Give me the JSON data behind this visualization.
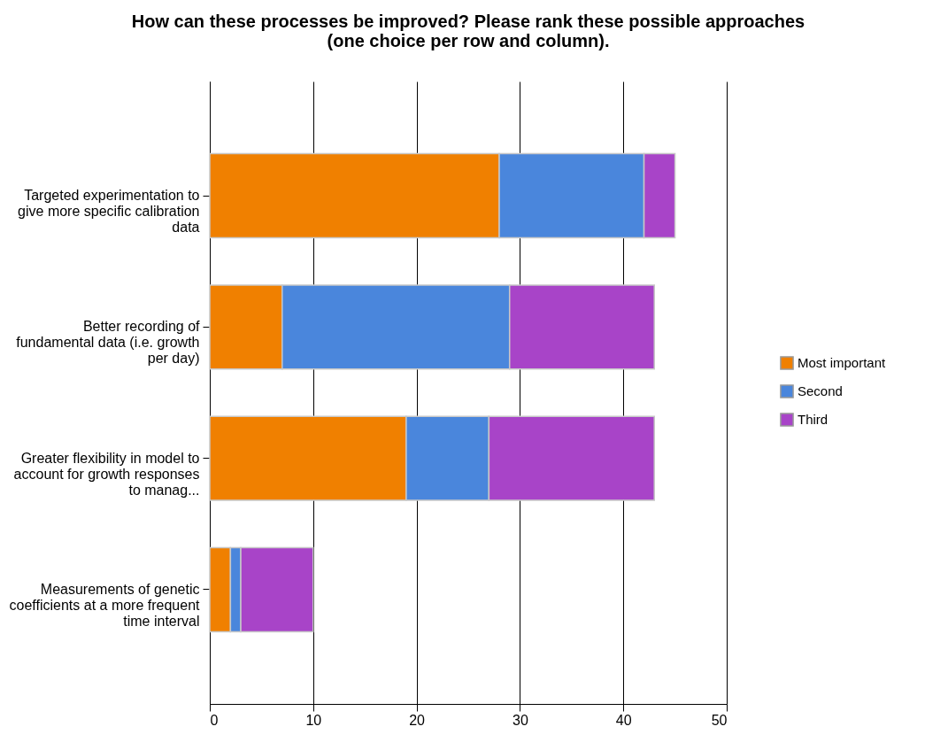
{
  "chart_data": {
    "type": "bar",
    "orientation": "horizontal",
    "stacked": true,
    "title": "How can these processes be improved? Please rank these possible approaches (one choice per row and column).",
    "categories": [
      "Targeted experimentation to give more specific calibration data",
      "Better recording of fundamental data (i.e. growth per day)",
      "Greater flexibility in model to account for growth responses to manag...",
      "Measurements of genetic coefficients at a more frequent time interval"
    ],
    "series": [
      {
        "name": "Most important",
        "color": "#f08000",
        "values": [
          28,
          7,
          19,
          2
        ]
      },
      {
        "name": "Second",
        "color": "#4a86dc",
        "values": [
          14,
          22,
          8,
          1
        ]
      },
      {
        "name": "Third",
        "color": "#a844c8",
        "values": [
          3,
          14,
          16,
          7
        ]
      }
    ],
    "xlim": [
      0,
      50
    ],
    "xticks": [
      0,
      10,
      20,
      30,
      40,
      50
    ],
    "grid": "x",
    "legend": "right"
  }
}
